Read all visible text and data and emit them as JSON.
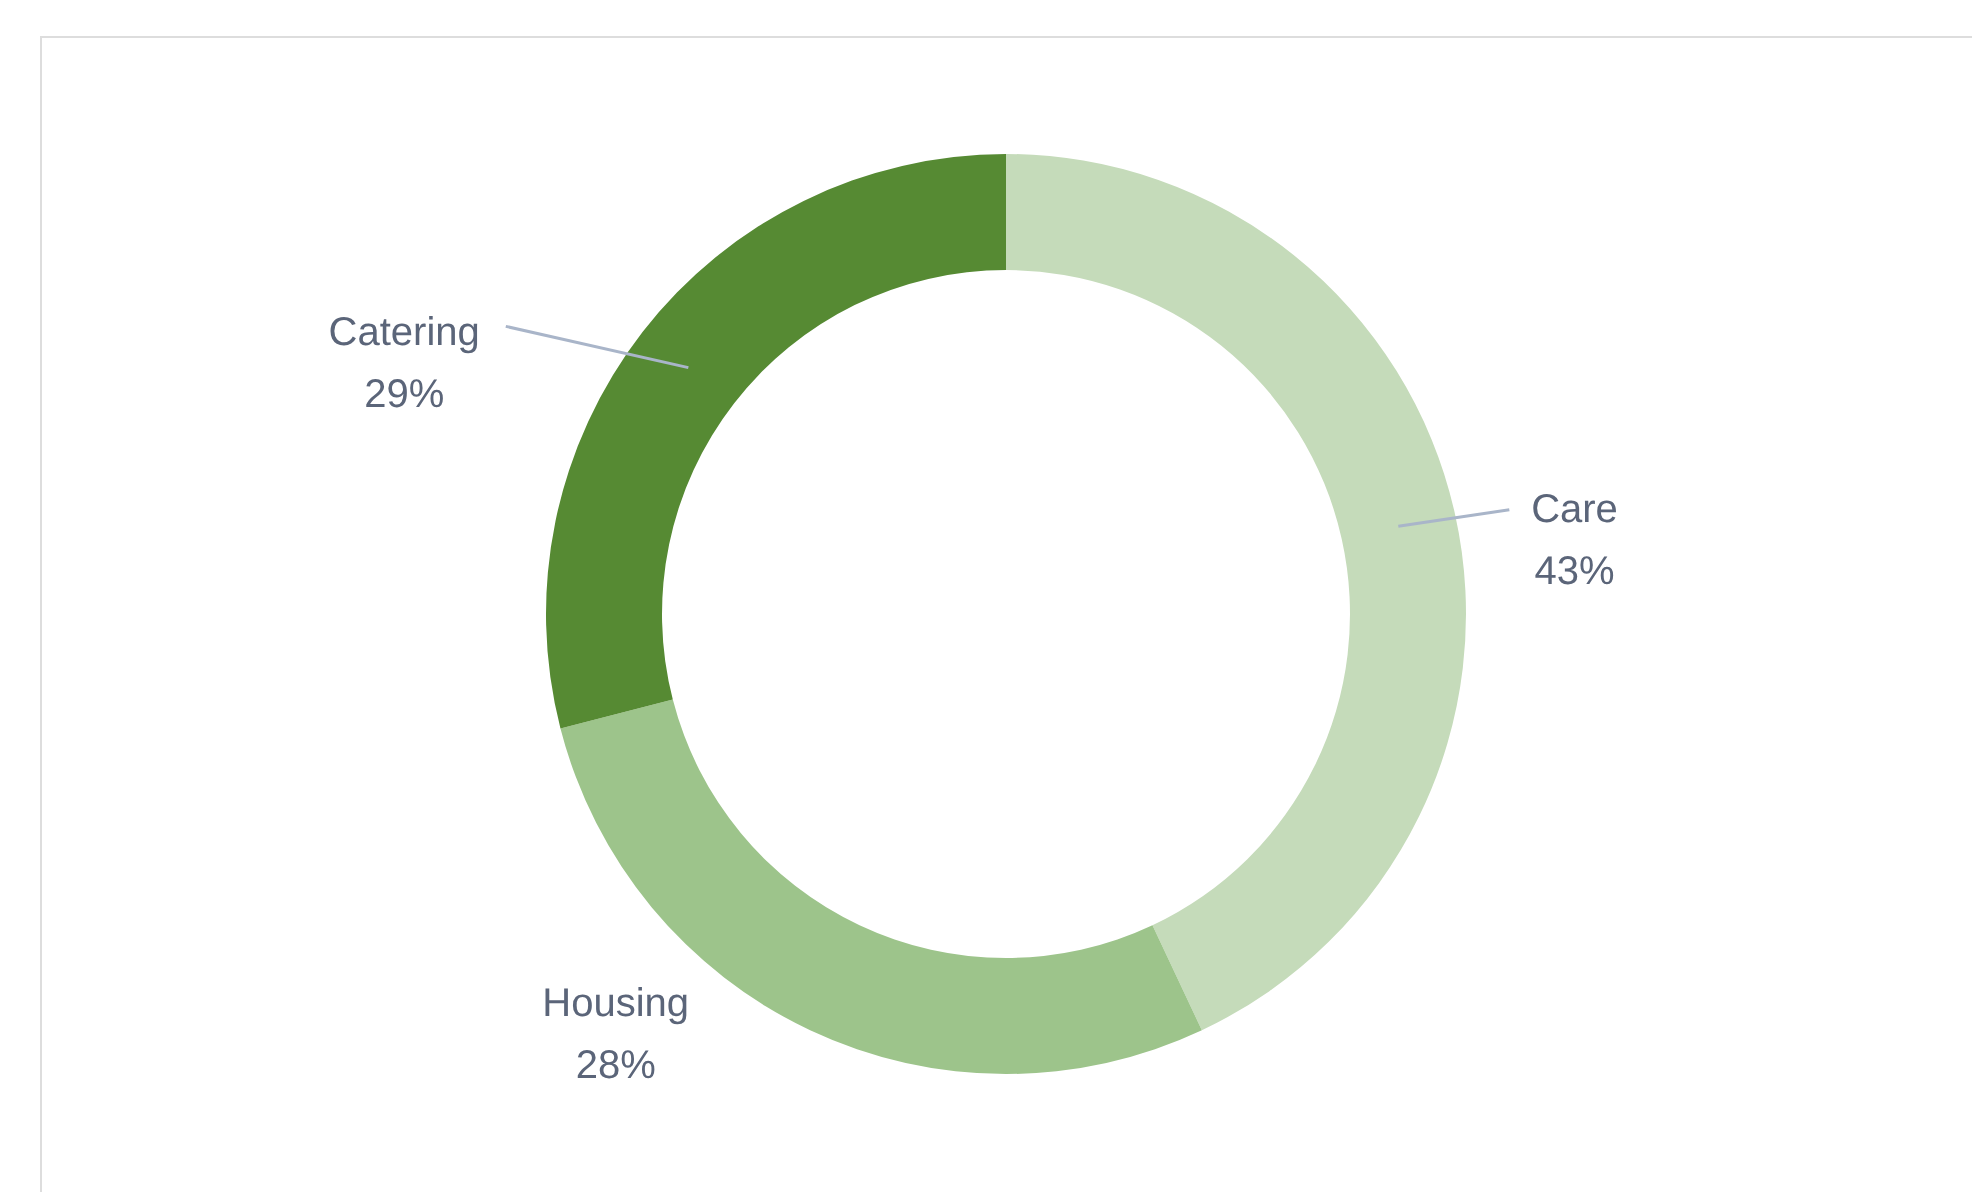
{
  "chart_data": {
    "type": "donut",
    "categories": [
      "Care",
      "Housing",
      "Catering"
    ],
    "values": [
      43,
      28,
      29
    ],
    "colors": [
      "#c5dbba",
      "#9dc48b",
      "#568a33"
    ],
    "value_labels": [
      "43%",
      "28%",
      "29%"
    ]
  }
}
